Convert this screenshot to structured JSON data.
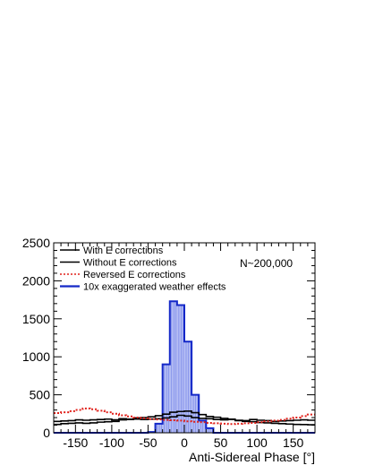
{
  "chart_data": {
    "type": "line",
    "xlabel": "Anti-Sidereal Phase [°]",
    "ylabel": "",
    "xlim": [
      -180,
      180
    ],
    "ylim": [
      0,
      2500
    ],
    "x_ticks": [
      -150,
      -100,
      -50,
      0,
      50,
      100,
      150
    ],
    "y_ticks": [
      0,
      500,
      1000,
      1500,
      2000,
      2500
    ],
    "grid": false,
    "legend_position": "top-left",
    "annotation": "N~200,000",
    "bin_edges": [
      -180,
      -170,
      -160,
      -150,
      -140,
      -130,
      -120,
      -110,
      -100,
      -90,
      -80,
      -70,
      -60,
      -50,
      -40,
      -30,
      -20,
      -10,
      0,
      10,
      20,
      30,
      40,
      50,
      60,
      70,
      80,
      90,
      100,
      110,
      120,
      130,
      140,
      150,
      160,
      170,
      180
    ],
    "series": [
      {
        "name": "With E corrections",
        "style": "solid",
        "color": "#000000",
        "values": [
          150,
          155,
          160,
          170,
          165,
          170,
          175,
          180,
          170,
          185,
          175,
          180,
          175,
          180,
          185,
          195,
          210,
          230,
          220,
          200,
          190,
          185,
          175,
          170,
          180,
          165,
          160,
          175,
          165,
          160,
          150,
          155,
          160,
          165,
          170,
          165
        ]
      },
      {
        "name": "Without E corrections",
        "style": "solid",
        "color": "#000000",
        "values": [
          110,
          120,
          125,
          130,
          125,
          130,
          140,
          145,
          150,
          170,
          180,
          195,
          200,
          210,
          225,
          245,
          270,
          280,
          285,
          265,
          240,
          215,
          205,
          190,
          175,
          160,
          150,
          145,
          135,
          130,
          125,
          120,
          115,
          110,
          108,
          105
        ]
      },
      {
        "name": "Reversed E corrections",
        "style": "dotted",
        "color": "#e0201a",
        "values": [
          260,
          270,
          285,
          300,
          320,
          310,
          290,
          270,
          250,
          230,
          215,
          200,
          190,
          180,
          175,
          170,
          165,
          160,
          150,
          145,
          140,
          130,
          125,
          120,
          115,
          120,
          125,
          130,
          140,
          150,
          160,
          170,
          185,
          200,
          220,
          240
        ]
      },
      {
        "name": "10x exaggerated weather effects",
        "style": "solid-filled",
        "color": "#1428c8",
        "fill": "#9aa6f0",
        "values": [
          0,
          0,
          0,
          0,
          0,
          0,
          0,
          0,
          0,
          0,
          0,
          0,
          0,
          10,
          120,
          900,
          1730,
          1680,
          1200,
          500,
          160,
          60,
          0,
          0,
          0,
          0,
          0,
          0,
          0,
          0,
          0,
          0,
          0,
          0,
          0,
          0
        ]
      }
    ]
  }
}
